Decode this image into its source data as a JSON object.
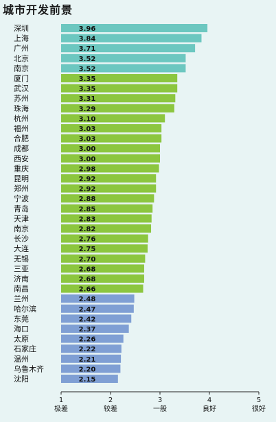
{
  "chart_data": {
    "type": "bar",
    "orientation": "horizontal",
    "title": "城市开发前景",
    "categories": [
      "深圳",
      "上海",
      "广州",
      "北京",
      "南京",
      "厦门",
      "武汉",
      "苏州",
      "珠海",
      "杭州",
      "福州",
      "合肥",
      "成都",
      "西安",
      "重庆",
      "昆明",
      "郑州",
      "宁波",
      "青岛",
      "天津",
      "南京",
      "长沙",
      "大连",
      "无锡",
      "三亚",
      "济南",
      "南昌",
      "兰州",
      "哈尔滨",
      "东莞",
      "海口",
      "太原",
      "石家庄",
      "温州",
      "乌鲁木齐",
      "沈阳"
    ],
    "values": [
      3.96,
      3.84,
      3.71,
      3.52,
      3.52,
      3.35,
      3.35,
      3.31,
      3.29,
      3.1,
      3.03,
      3.03,
      3.0,
      3.0,
      2.98,
      2.92,
      2.92,
      2.88,
      2.85,
      2.83,
      2.82,
      2.76,
      2.75,
      2.7,
      2.68,
      2.68,
      2.66,
      2.48,
      2.47,
      2.42,
      2.37,
      2.26,
      2.22,
      2.21,
      2.2,
      2.15
    ],
    "value_labels": [
      "3.96",
      "3.84",
      "3.71",
      "3.52",
      "3.52",
      "3.35",
      "3.35",
      "3.31",
      "3.29",
      "3.10",
      "3.03",
      "3.03",
      "3.00",
      "3.00",
      "2.98",
      "2.92",
      "2.92",
      "2.88",
      "2.85",
      "2.83",
      "2.82",
      "2.76",
      "2.75",
      "2.70",
      "2.68",
      "2.68",
      "2.66",
      "2.48",
      "2.47",
      "2.42",
      "2.37",
      "2.26",
      "2.22",
      "2.21",
      "2.20",
      "2.15"
    ],
    "groups": [
      0,
      0,
      0,
      0,
      0,
      1,
      1,
      1,
      1,
      1,
      1,
      1,
      1,
      1,
      1,
      1,
      1,
      1,
      1,
      1,
      1,
      1,
      1,
      1,
      1,
      1,
      1,
      2,
      2,
      2,
      2,
      2,
      2,
      2,
      2,
      2
    ],
    "group_colors": [
      "#6cc7c0",
      "#8cc63f",
      "#7f9fd4"
    ],
    "xlim": [
      1,
      5
    ],
    "x_ticks": [
      1,
      2,
      3,
      4,
      5
    ],
    "x_tick_words": [
      "极差",
      "较差",
      "一般",
      "良好",
      "很好"
    ],
    "grid": false,
    "legend": "none"
  }
}
